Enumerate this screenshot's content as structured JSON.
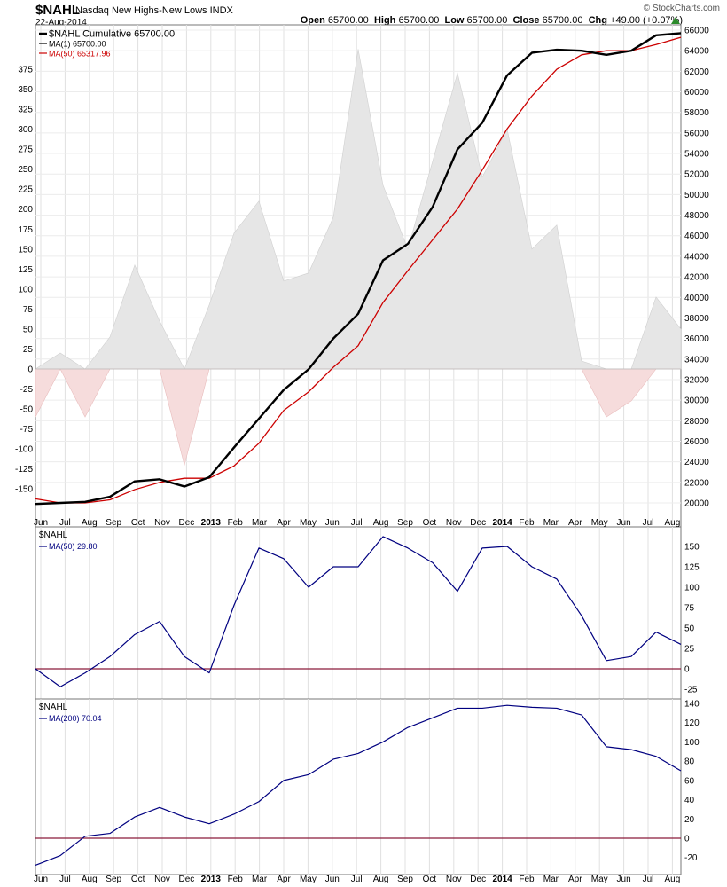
{
  "header": {
    "symbol": "$NAHL",
    "name": "Nasdaq New Highs-New Lows INDX",
    "date": "22-Aug-2014",
    "brand": "© StockCharts.com",
    "open_label": "Open",
    "open": "65700.00",
    "high_label": "High",
    "high": "65700.00",
    "low_label": "Low",
    "low": "65700.00",
    "close_label": "Close",
    "close": "65700.00",
    "chg_label": "Chg",
    "chg": "+49.00 (+0.07%)"
  },
  "colors": {
    "cumulative": "#000000",
    "ma50_cum": "#cc0000",
    "ma_lines": "#000080",
    "zero_line": "#8b1a3a",
    "pos_area": "#e6e6e6",
    "neg_area": "#f6dcdc"
  },
  "x_labels": [
    "Jun",
    "Jul",
    "Aug",
    "Sep",
    "Oct",
    "Nov",
    "Dec",
    "2013",
    "Feb",
    "Mar",
    "Apr",
    "May",
    "Jun",
    "Jul",
    "Aug",
    "Sep",
    "Oct",
    "Nov",
    "Dec",
    "2014",
    "Feb",
    "Mar",
    "Apr",
    "May",
    "Jun",
    "Jul",
    "Aug"
  ],
  "x_bold": [
    "2013",
    "2014"
  ],
  "chart_data": [
    {
      "type": "area",
      "title": "$NAHL Nasdaq New Highs-New Lows INDX",
      "panel": "main",
      "left_axis": {
        "ticks": [
          -150,
          -125,
          -100,
          -75,
          -50,
          -25,
          0,
          25,
          50,
          75,
          100,
          125,
          150,
          175,
          200,
          225,
          250,
          275,
          300,
          325,
          350,
          375
        ]
      },
      "right_axis": {
        "ticks": [
          20000,
          22000,
          24000,
          26000,
          28000,
          30000,
          32000,
          34000,
          36000,
          38000,
          40000,
          42000,
          44000,
          46000,
          48000,
          50000,
          52000,
          54000,
          56000,
          58000,
          60000,
          62000,
          64000,
          66000
        ]
      },
      "legend": [
        "$NAHL Cumulative 65700.00",
        "MA(1) 65700.00",
        "MA(50) 65317.96"
      ],
      "series": [
        {
          "name": "$NAHL Cumulative 65700.00",
          "axis": "right",
          "x": [
            "2012-06",
            "2012-07",
            "2012-08",
            "2012-09",
            "2012-10",
            "2012-11",
            "2012-12",
            "2013-01",
            "2013-02",
            "2013-03",
            "2013-04",
            "2013-05",
            "2013-06",
            "2013-07",
            "2013-08",
            "2013-09",
            "2013-10",
            "2013-11",
            "2013-12",
            "2014-01",
            "2014-02",
            "2014-03",
            "2014-04",
            "2014-05",
            "2014-06",
            "2014-07",
            "2014-08"
          ],
          "values": [
            19900,
            20000,
            20100,
            20600,
            22100,
            22300,
            21600,
            22500,
            25400,
            28200,
            31000,
            33000,
            36000,
            38400,
            43600,
            45200,
            48800,
            54400,
            57000,
            61600,
            63800,
            64100,
            64000,
            63600,
            64000,
            65500,
            65700
          ]
        },
        {
          "name": "MA(50) 65317.96",
          "axis": "right",
          "x": [
            "2012-06",
            "2012-07",
            "2012-08",
            "2012-09",
            "2012-10",
            "2012-11",
            "2012-12",
            "2013-01",
            "2013-02",
            "2013-03",
            "2013-04",
            "2013-05",
            "2013-06",
            "2013-07",
            "2013-08",
            "2013-09",
            "2013-10",
            "2013-11",
            "2013-12",
            "2014-01",
            "2014-02",
            "2014-03",
            "2014-04",
            "2014-05",
            "2014-06",
            "2014-07",
            "2014-08"
          ],
          "values": [
            20400,
            20000,
            20000,
            20300,
            21300,
            22000,
            22400,
            22400,
            23600,
            25800,
            29000,
            30800,
            33200,
            35300,
            39500,
            42600,
            45600,
            48600,
            52400,
            56400,
            59600,
            62200,
            63600,
            64000,
            64000,
            64600,
            65300
          ]
        },
        {
          "name": "$NAHL",
          "axis": "left",
          "x": [
            "2012-06",
            "2012-07",
            "2012-08",
            "2012-09",
            "2012-10",
            "2012-11",
            "2012-12",
            "2013-01",
            "2013-02",
            "2013-03",
            "2013-04",
            "2013-05",
            "2013-06",
            "2013-07",
            "2013-08",
            "2013-09",
            "2013-10",
            "2013-11",
            "2013-12",
            "2014-01",
            "2014-02",
            "2014-03",
            "2014-04",
            "2014-05",
            "2014-06",
            "2014-07",
            "2014-08"
          ],
          "values": [
            -60,
            20,
            -60,
            40,
            130,
            60,
            -120,
            80,
            170,
            210,
            110,
            120,
            190,
            400,
            230,
            150,
            260,
            370,
            240,
            300,
            150,
            180,
            10,
            -60,
            -40,
            90,
            50
          ]
        }
      ]
    },
    {
      "type": "line",
      "title": "$NAHL",
      "panel": "ma50",
      "right_axis": {
        "ticks": [
          -25,
          0,
          25,
          50,
          75,
          100,
          125,
          150
        ]
      },
      "series": [
        {
          "name": "MA(50) 29.80",
          "x": [
            "2012-06",
            "2012-07",
            "2012-08",
            "2012-09",
            "2012-10",
            "2012-11",
            "2012-12",
            "2013-01",
            "2013-02",
            "2013-03",
            "2013-04",
            "2013-05",
            "2013-06",
            "2013-07",
            "2013-08",
            "2013-09",
            "2013-10",
            "2013-11",
            "2013-12",
            "2014-01",
            "2014-02",
            "2014-03",
            "2014-04",
            "2014-05",
            "2014-06",
            "2014-07",
            "2014-08"
          ],
          "values": [
            0,
            -22,
            -5,
            15,
            42,
            58,
            15,
            -5,
            78,
            148,
            135,
            100,
            125,
            125,
            162,
            148,
            130,
            95,
            148,
            150,
            125,
            110,
            65,
            10,
            15,
            45,
            30
          ]
        }
      ]
    },
    {
      "type": "line",
      "title": "$NAHL",
      "panel": "ma200",
      "right_axis": {
        "ticks": [
          -20,
          0,
          20,
          40,
          60,
          80,
          100,
          120,
          140
        ]
      },
      "series": [
        {
          "name": "MA(200) 70.04",
          "x": [
            "2012-06",
            "2012-07",
            "2012-08",
            "2012-09",
            "2012-10",
            "2012-11",
            "2012-12",
            "2013-01",
            "2013-02",
            "2013-03",
            "2013-04",
            "2013-05",
            "2013-06",
            "2013-07",
            "2013-08",
            "2013-09",
            "2013-10",
            "2013-11",
            "2013-12",
            "2014-01",
            "2014-02",
            "2014-03",
            "2014-04",
            "2014-05",
            "2014-06",
            "2014-07",
            "2014-08"
          ],
          "values": [
            -28,
            -18,
            2,
            5,
            22,
            32,
            22,
            15,
            25,
            38,
            60,
            66,
            82,
            88,
            100,
            115,
            125,
            135,
            135,
            138,
            136,
            135,
            128,
            95,
            92,
            85,
            70
          ]
        }
      ]
    }
  ]
}
